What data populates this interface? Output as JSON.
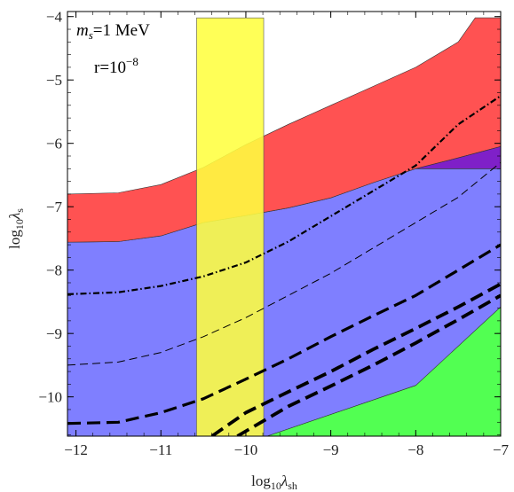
{
  "chart_data": {
    "type": "area",
    "title": "",
    "xlabel": {
      "base": "log",
      "sub1": "10",
      "sym": "λ",
      "sub2": "sh"
    },
    "ylabel": {
      "base": "log",
      "sub1": "10",
      "sym": "λ",
      "sub2": "s"
    },
    "xlim": [
      -12.1,
      -7.0
    ],
    "ylim": [
      -10.62,
      -3.92
    ],
    "x_scale": "log10 value",
    "grid": false,
    "legend": "none",
    "x_ticks": [
      {
        "v": -12,
        "label": "−12"
      },
      {
        "v": -11,
        "label": "−11"
      },
      {
        "v": -10,
        "label": "−10"
      },
      {
        "v": -9,
        "label": "−9"
      },
      {
        "v": -8,
        "label": "−8"
      },
      {
        "v": -7,
        "label": "−7"
      }
    ],
    "y_ticks": [
      {
        "v": -4,
        "label": "−4"
      },
      {
        "v": -5,
        "label": "−5"
      },
      {
        "v": -6,
        "label": "−6"
      },
      {
        "v": -7,
        "label": "−7"
      },
      {
        "v": -8,
        "label": "−8"
      },
      {
        "v": -9,
        "label": "−9"
      },
      {
        "v": -10,
        "label": "−10"
      }
    ],
    "annotations": {
      "line1": {
        "m": "m",
        "s": "s",
        "rest": "=1 MeV"
      },
      "line2": {
        "base": "r=10",
        "exp": "−8"
      }
    },
    "regions": [
      {
        "id": "blue",
        "color": "#7f7fff",
        "upper": [
          [
            -12.1,
            -7.56
          ],
          [
            -11.5,
            -7.55
          ],
          [
            -11,
            -7.46
          ],
          [
            -10.5,
            -7.25
          ],
          [
            -10,
            -7.14
          ],
          [
            -9.5,
            -7.02
          ],
          [
            -9,
            -6.86
          ],
          [
            -8.5,
            -6.62
          ],
          [
            -8.0,
            -6.4
          ],
          [
            -7.5,
            -6.4
          ],
          [
            -7.0,
            -6.4
          ]
        ],
        "lower": [
          [
            -12.1,
            -10.62
          ],
          [
            -9.75,
            -10.62
          ],
          [
            -8.0,
            -9.82
          ],
          [
            -7.0,
            -9.32
          ]
        ]
      },
      {
        "id": "red",
        "color": "#ff5252",
        "upper": [
          [
            -12.1,
            -6.8
          ],
          [
            -11.5,
            -6.78
          ],
          [
            -11,
            -6.65
          ],
          [
            -10.5,
            -6.38
          ],
          [
            -10,
            -6.02
          ],
          [
            -9.5,
            -5.7
          ],
          [
            -9,
            -5.4
          ],
          [
            -8.5,
            -5.1
          ],
          [
            -8,
            -4.8
          ],
          [
            -7.5,
            -4.4
          ],
          [
            -7.3,
            -4.02
          ],
          [
            -7.0,
            -4.02
          ]
        ],
        "lower": [
          [
            -12.1,
            -7.56
          ],
          [
            -11.5,
            -7.55
          ],
          [
            -11,
            -7.46
          ],
          [
            -10.5,
            -7.25
          ],
          [
            -10,
            -7.14
          ],
          [
            -9.5,
            -7.02
          ],
          [
            -9,
            -6.86
          ],
          [
            -8.5,
            -6.62
          ],
          [
            -8.0,
            -6.4
          ],
          [
            -7.5,
            -6.23
          ],
          [
            -7.0,
            -6.05
          ]
        ]
      },
      {
        "id": "purple",
        "color": "#7f20c8",
        "upper": [
          [
            -8.0,
            -6.4
          ],
          [
            -7.5,
            -6.23
          ],
          [
            -7.0,
            -6.05
          ]
        ],
        "lower": [
          [
            -8.0,
            -6.4
          ],
          [
            -7.5,
            -6.4
          ],
          [
            -7.0,
            -6.4
          ]
        ]
      },
      {
        "id": "green",
        "color": "#52ff52",
        "upper": [
          [
            -9.75,
            -10.62
          ],
          [
            -8.0,
            -9.82
          ],
          [
            -7.0,
            -8.58
          ]
        ],
        "lower": [
          [
            -9.75,
            -10.62
          ],
          [
            -7.0,
            -10.62
          ]
        ]
      }
    ],
    "band": {
      "id": "yellow-band",
      "x0": -10.58,
      "x1": -9.79,
      "y0": -10.62,
      "y1": -4.02,
      "color": "#ffff40",
      "opacity": 0.88
    },
    "curves": [
      {
        "id": "dash-dot-curve",
        "style": "dashdot",
        "width": 2.2,
        "points": [
          [
            -12.1,
            -8.38
          ],
          [
            -11.5,
            -8.35
          ],
          [
            -11,
            -8.25
          ],
          [
            -10.5,
            -8.1
          ],
          [
            -10,
            -7.88
          ],
          [
            -9.5,
            -7.55
          ],
          [
            -9,
            -7.15
          ],
          [
            -8.5,
            -6.75
          ],
          [
            -8,
            -6.35
          ],
          [
            -7.5,
            -5.7
          ],
          [
            -7.0,
            -5.25
          ]
        ]
      },
      {
        "id": "thin-dashed-curve",
        "style": "thin-dash",
        "width": 1.0,
        "points": [
          [
            -12.1,
            -9.5
          ],
          [
            -11.5,
            -9.45
          ],
          [
            -11,
            -9.3
          ],
          [
            -10.5,
            -9.05
          ],
          [
            -10,
            -8.75
          ],
          [
            -9.5,
            -8.4
          ],
          [
            -9,
            -8.05
          ],
          [
            -8.5,
            -7.65
          ],
          [
            -8,
            -7.25
          ],
          [
            -7.5,
            -6.85
          ],
          [
            -7.0,
            -6.3
          ]
        ]
      },
      {
        "id": "thick-dashed-curve-1",
        "style": "thick-dash",
        "width": 3.2,
        "points": [
          [
            -12.1,
            -10.42
          ],
          [
            -11.5,
            -10.4
          ],
          [
            -11,
            -10.25
          ],
          [
            -10.5,
            -10.03
          ],
          [
            -10,
            -9.72
          ],
          [
            -9.5,
            -9.4
          ],
          [
            -9,
            -9.05
          ],
          [
            -8.5,
            -8.72
          ],
          [
            -8,
            -8.4
          ],
          [
            -7.5,
            -8.0
          ],
          [
            -7.0,
            -7.6
          ]
        ]
      },
      {
        "id": "thick-dashed-curve-2",
        "style": "thick-dash",
        "width": 3.8,
        "points": [
          [
            -10.4,
            -10.62
          ],
          [
            -10,
            -10.25
          ],
          [
            -9.5,
            -9.92
          ],
          [
            -9,
            -9.6
          ],
          [
            -8.5,
            -9.25
          ],
          [
            -8,
            -8.92
          ],
          [
            -7.5,
            -8.58
          ],
          [
            -7.0,
            -8.22
          ]
        ]
      },
      {
        "id": "thick-dashed-curve-3",
        "style": "thick-dash",
        "width": 3.8,
        "points": [
          [
            -10.1,
            -10.62
          ],
          [
            -9.5,
            -10.15
          ],
          [
            -9,
            -9.83
          ],
          [
            -8.5,
            -9.5
          ],
          [
            -8,
            -9.15
          ],
          [
            -7.5,
            -8.78
          ],
          [
            -7.0,
            -8.4
          ]
        ]
      }
    ]
  }
}
